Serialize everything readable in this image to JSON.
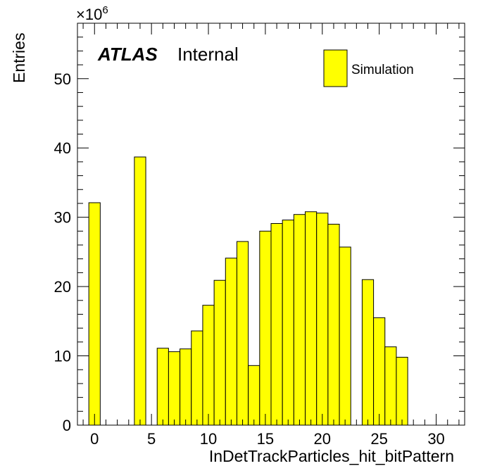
{
  "chart_data": {
    "type": "bar",
    "title": "",
    "xlabel": "InDetTrackParticles_hit_bitPattern",
    "ylabel": "Entries",
    "y_multiplier_base": "×10",
    "y_multiplier_exponent": "6",
    "experiment_label": "ATLAS",
    "status_label": "Internal",
    "xlim": [
      -1.5,
      32.5
    ],
    "ylim": [
      0,
      58
    ],
    "x_ticks": [
      0,
      5,
      10,
      15,
      20,
      25,
      30
    ],
    "x_tick_labels": [
      "0",
      "5",
      "10",
      "15",
      "20",
      "25",
      "30"
    ],
    "y_ticks": [
      0,
      10,
      20,
      30,
      40,
      50
    ],
    "y_tick_labels": [
      "0",
      "10",
      "20",
      "30",
      "40",
      "50"
    ],
    "fill_color": "#ffff00",
    "edge_color": "#000000",
    "legend_position": "top-right",
    "series": [
      {
        "name": "Simulation",
        "bin_centers": [
          0,
          4,
          6,
          7,
          8,
          9,
          10,
          11,
          12,
          13,
          14,
          15,
          16,
          17,
          18,
          19,
          20,
          21,
          22,
          24,
          25,
          26,
          27
        ],
        "values": [
          32.1,
          38.7,
          11.1,
          10.6,
          11.0,
          13.6,
          17.3,
          20.9,
          24.1,
          26.5,
          8.6,
          28.0,
          29.1,
          29.6,
          30.4,
          30.8,
          30.6,
          29.0,
          25.7,
          21.0,
          15.5,
          11.3,
          9.8
        ]
      }
    ]
  }
}
